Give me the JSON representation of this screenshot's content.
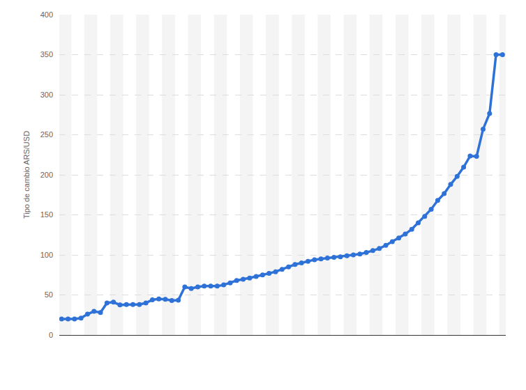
{
  "chart_data": {
    "type": "line",
    "y_label": "Tipo de cambio ARS/USD",
    "categories": [
      null,
      null,
      null,
      null,
      null,
      null,
      null,
      null,
      null,
      null,
      null,
      null,
      null,
      null,
      null,
      null,
      null,
      null,
      null,
      null,
      null,
      null,
      null,
      null,
      null,
      null,
      null,
      null,
      null,
      null,
      null,
      null,
      null,
      null,
      null,
      null,
      null,
      null,
      null,
      null,
      null,
      null,
      null,
      null,
      null,
      null,
      null,
      null,
      null,
      null,
      null,
      null,
      null,
      null,
      null,
      null,
      null,
      null,
      null,
      null,
      null,
      null,
      null,
      null,
      null,
      null,
      null,
      null,
      null
    ],
    "values": [
      20,
      20,
      20,
      21,
      26,
      29.5,
      28,
      40,
      41,
      37.5,
      38,
      38,
      38,
      40,
      44,
      45,
      44.5,
      43,
      43.5,
      60,
      58,
      60,
      61,
      61,
      61,
      62.5,
      65,
      68,
      69.5,
      71,
      73,
      75,
      77,
      79,
      82,
      85,
      88,
      90,
      92,
      94,
      95,
      96,
      97,
      97.5,
      99,
      100,
      101,
      103,
      105.5,
      108,
      112,
      116.5,
      121,
      126,
      132,
      140,
      148,
      157,
      168,
      176.5,
      188,
      198,
      209.5,
      223.5,
      223,
      257,
      276.5,
      350,
      350
    ],
    "color": "#2e72d8",
    "marker": "circle",
    "ylim": [
      0,
      400
    ],
    "yticks": [
      0,
      50,
      100,
      150,
      200,
      250,
      300,
      350,
      400
    ],
    "grid": true,
    "tick_labels": "y"
  }
}
